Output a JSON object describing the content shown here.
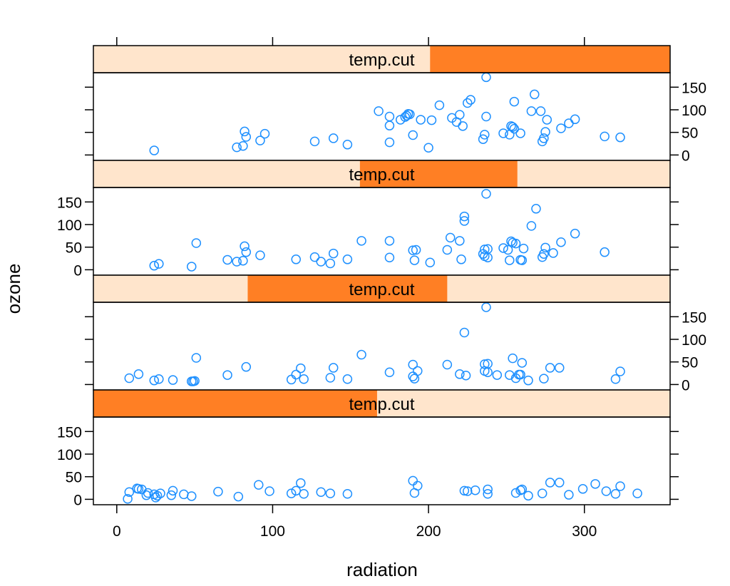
{
  "chart_data": {
    "type": "scatter",
    "xlabel": "radiation",
    "ylabel": "ozone",
    "strip_label": "temp.cut",
    "xlim": [
      -15,
      355
    ],
    "ylim": [
      -12,
      182
    ],
    "x_ticks": [
      0,
      100,
      200,
      300
    ],
    "y_ticks": [
      0,
      50,
      100,
      150
    ],
    "grid": false,
    "colors": {
      "points": "#1E90FF",
      "strip_bg": "#FFE5CC",
      "strip_fill": "#FF7F24",
      "frame": "#000000"
    },
    "panels": [
      {
        "strip_range": [
          201,
          355
        ],
        "points": [
          [
            24,
            10
          ],
          [
            77,
            17
          ],
          [
            81,
            20
          ],
          [
            82,
            52
          ],
          [
            83,
            40
          ],
          [
            92,
            32
          ],
          [
            95,
            47
          ],
          [
            127,
            30
          ],
          [
            139,
            37
          ],
          [
            148,
            23
          ],
          [
            168,
            97
          ],
          [
            175,
            85
          ],
          [
            175,
            65
          ],
          [
            175,
            28
          ],
          [
            182,
            78
          ],
          [
            185,
            84
          ],
          [
            186,
            87
          ],
          [
            187,
            91
          ],
          [
            188,
            90
          ],
          [
            190,
            44
          ],
          [
            195,
            78
          ],
          [
            200,
            16
          ],
          [
            202,
            77
          ],
          [
            207,
            110
          ],
          [
            215,
            82
          ],
          [
            218,
            73
          ],
          [
            220,
            89
          ],
          [
            222,
            64
          ],
          [
            225,
            115
          ],
          [
            227,
            122
          ],
          [
            235,
            35
          ],
          [
            236,
            45
          ],
          [
            237,
            85
          ],
          [
            237,
            172
          ],
          [
            248,
            48
          ],
          [
            252,
            45
          ],
          [
            253,
            64
          ],
          [
            254,
            62
          ],
          [
            255,
            118
          ],
          [
            255,
            58
          ],
          [
            259,
            48
          ],
          [
            266,
            97
          ],
          [
            268,
            134
          ],
          [
            272,
            97
          ],
          [
            273,
            30
          ],
          [
            274,
            37
          ],
          [
            275,
            51
          ],
          [
            276,
            78
          ],
          [
            285,
            59
          ],
          [
            290,
            70
          ],
          [
            294,
            79
          ],
          [
            313,
            41
          ],
          [
            323,
            39
          ]
        ]
      },
      {
        "strip_range": [
          156,
          257
        ],
        "points": [
          [
            24,
            9
          ],
          [
            27,
            13
          ],
          [
            48,
            7
          ],
          [
            51,
            59
          ],
          [
            71,
            22
          ],
          [
            77,
            18
          ],
          [
            81,
            20
          ],
          [
            82,
            52
          ],
          [
            83,
            39
          ],
          [
            92,
            32
          ],
          [
            115,
            23
          ],
          [
            127,
            28
          ],
          [
            131,
            18
          ],
          [
            137,
            14
          ],
          [
            139,
            36
          ],
          [
            148,
            23
          ],
          [
            157,
            64
          ],
          [
            175,
            64
          ],
          [
            175,
            27
          ],
          [
            190,
            43
          ],
          [
            191,
            21
          ],
          [
            192,
            44
          ],
          [
            201,
            16
          ],
          [
            212,
            44
          ],
          [
            214,
            71
          ],
          [
            220,
            64
          ],
          [
            221,
            23
          ],
          [
            223,
            118
          ],
          [
            223,
            108
          ],
          [
            235,
            35
          ],
          [
            236,
            45
          ],
          [
            236,
            30
          ],
          [
            237,
            168
          ],
          [
            238,
            46
          ],
          [
            238,
            27
          ],
          [
            248,
            48
          ],
          [
            251,
            44
          ],
          [
            252,
            21
          ],
          [
            253,
            63
          ],
          [
            254,
            60
          ],
          [
            256,
            58
          ],
          [
            259,
            22
          ],
          [
            260,
            21
          ],
          [
            261,
            47
          ],
          [
            266,
            97
          ],
          [
            269,
            135
          ],
          [
            273,
            28
          ],
          [
            274,
            35
          ],
          [
            275,
            49
          ],
          [
            280,
            37
          ],
          [
            285,
            61
          ],
          [
            294,
            80
          ],
          [
            313,
            39
          ]
        ]
      },
      {
        "strip_range": [
          84,
          212
        ],
        "points": [
          [
            8,
            14
          ],
          [
            14,
            23
          ],
          [
            24,
            9
          ],
          [
            27,
            12
          ],
          [
            36,
            10
          ],
          [
            48,
            7
          ],
          [
            49,
            7
          ],
          [
            50,
            8
          ],
          [
            51,
            59
          ],
          [
            71,
            21
          ],
          [
            83,
            39
          ],
          [
            112,
            11
          ],
          [
            115,
            22
          ],
          [
            118,
            36
          ],
          [
            120,
            12
          ],
          [
            137,
            15
          ],
          [
            139,
            37
          ],
          [
            148,
            12
          ],
          [
            157,
            66
          ],
          [
            175,
            27
          ],
          [
            190,
            44
          ],
          [
            190,
            18
          ],
          [
            191,
            13
          ],
          [
            193,
            30
          ],
          [
            212,
            44
          ],
          [
            220,
            23
          ],
          [
            223,
            115
          ],
          [
            224,
            20
          ],
          [
            236,
            45
          ],
          [
            236,
            30
          ],
          [
            237,
            171
          ],
          [
            238,
            46
          ],
          [
            238,
            27
          ],
          [
            244,
            21
          ],
          [
            252,
            21
          ],
          [
            254,
            58
          ],
          [
            256,
            14
          ],
          [
            258,
            22
          ],
          [
            259,
            22
          ],
          [
            260,
            48
          ],
          [
            264,
            9
          ],
          [
            274,
            13
          ],
          [
            278,
            37
          ],
          [
            284,
            37
          ],
          [
            320,
            12
          ],
          [
            323,
            29
          ]
        ]
      },
      {
        "strip_range": [
          -15,
          167
        ],
        "points": [
          [
            7,
            1
          ],
          [
            8,
            16
          ],
          [
            13,
            24
          ],
          [
            14,
            23
          ],
          [
            16,
            22
          ],
          [
            19,
            9
          ],
          [
            20,
            14
          ],
          [
            24,
            11
          ],
          [
            25,
            4
          ],
          [
            26,
            8
          ],
          [
            28,
            13
          ],
          [
            35,
            9
          ],
          [
            36,
            19
          ],
          [
            43,
            11
          ],
          [
            48,
            7
          ],
          [
            65,
            17
          ],
          [
            78,
            6
          ],
          [
            91,
            32
          ],
          [
            98,
            18
          ],
          [
            112,
            13
          ],
          [
            115,
            19
          ],
          [
            118,
            36
          ],
          [
            120,
            12
          ],
          [
            131,
            16
          ],
          [
            137,
            13
          ],
          [
            148,
            12
          ],
          [
            190,
            41
          ],
          [
            191,
            14
          ],
          [
            193,
            30
          ],
          [
            223,
            19
          ],
          [
            225,
            18
          ],
          [
            230,
            20
          ],
          [
            238,
            22
          ],
          [
            238,
            12
          ],
          [
            256,
            14
          ],
          [
            259,
            20
          ],
          [
            260,
            22
          ],
          [
            264,
            8
          ],
          [
            273,
            13
          ],
          [
            278,
            37
          ],
          [
            284,
            37
          ],
          [
            290,
            10
          ],
          [
            299,
            23
          ],
          [
            307,
            34
          ],
          [
            314,
            18
          ],
          [
            320,
            12
          ],
          [
            323,
            29
          ],
          [
            334,
            13
          ]
        ]
      }
    ]
  }
}
